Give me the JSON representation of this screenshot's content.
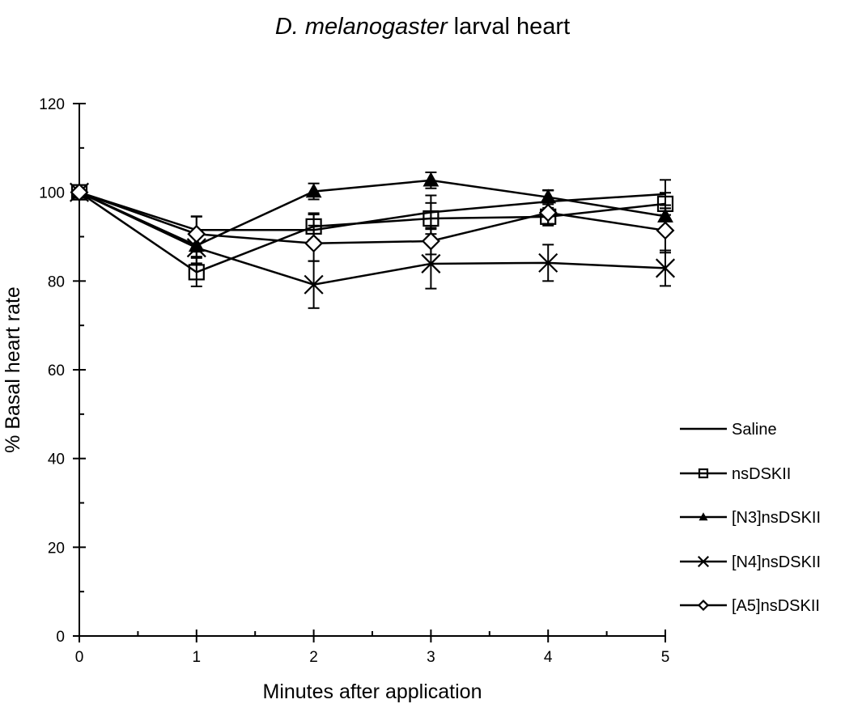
{
  "chart_data": {
    "type": "line",
    "title": {
      "italic_part": "D. melanogaster",
      "regular_part": " larval heart"
    },
    "xlabel": "Minutes after application",
    "ylabel": "% Basal heart rate",
    "xlim": [
      0,
      5
    ],
    "ylim": [
      0,
      120
    ],
    "x_ticks": [
      0,
      1,
      2,
      3,
      4,
      5
    ],
    "x_minor_step": 0.5,
    "y_ticks": [
      0,
      20,
      40,
      60,
      80,
      100,
      120
    ],
    "y_minor_step": 10,
    "grid": false,
    "legend_position": "right",
    "x": [
      0,
      1,
      2,
      3,
      4,
      5
    ],
    "series": [
      {
        "name": "Saline",
        "marker": "none",
        "values": [
          100,
          91.5,
          91.5,
          95.5,
          97.9,
          99.6
        ],
        "errors": [
          0,
          3,
          3.5,
          3.8,
          2.5,
          3.2
        ]
      },
      {
        "name": "nsDSKII",
        "marker": "square-open",
        "values": [
          100,
          82,
          92.3,
          94.1,
          94.5,
          97.4
        ],
        "errors": [
          0,
          3.2,
          3,
          3.5,
          2,
          2.5
        ]
      },
      {
        "name": "[N3]nsDSKII",
        "marker": "triangle-filled",
        "values": [
          100,
          88,
          100.2,
          102.7,
          98.9,
          94.6
        ],
        "errors": [
          0,
          2.5,
          1.8,
          1.8,
          1.6,
          2.5
        ]
      },
      {
        "name": "[N4]nsDSKII",
        "marker": "x",
        "values": [
          100,
          87.5,
          79.2,
          83.9,
          84.1,
          82.9
        ],
        "errors": [
          0,
          3.5,
          5.3,
          5.6,
          4.1,
          4
        ]
      },
      {
        "name": "[A5]nsDSKII",
        "marker": "diamond-open",
        "values": [
          100,
          90.6,
          88.5,
          89,
          95.4,
          91.4
        ],
        "errors": [
          0,
          4,
          4,
          3,
          2.5,
          5
        ]
      }
    ]
  }
}
